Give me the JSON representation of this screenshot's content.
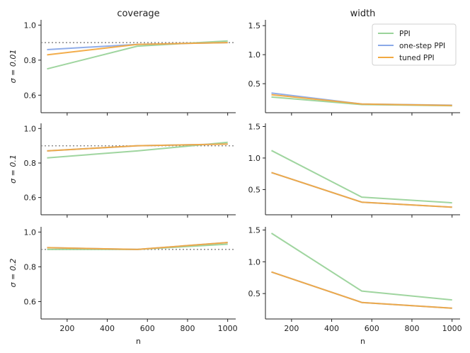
{
  "colors": {
    "PPI": "#9ad39a",
    "one-step PPI": "#8aa9e8",
    "tuned PPI": "#f2a941",
    "reference": "#888888"
  },
  "chart_data": {
    "type": "line",
    "column_titles": [
      "coverage",
      "width"
    ],
    "row_labels": [
      "σ = 0.01",
      "σ = 0.1",
      "σ = 0.2"
    ],
    "xlabel": "n",
    "x": [
      100,
      550,
      1000
    ],
    "x_ticks": [
      200,
      400,
      600,
      800,
      1000
    ],
    "xlim": [
      70,
      1040
    ],
    "legend": {
      "placement": "top-right",
      "entries": [
        "PPI",
        "one-step PPI",
        "tuned PPI"
      ]
    },
    "panels": [
      {
        "row": 0,
        "col": 0,
        "ylim": [
          0.5,
          1.03
        ],
        "y_ticks": [
          0.6,
          0.8,
          1.0
        ],
        "y_tick_labels": [
          "0.6",
          "0.8",
          "1.0"
        ],
        "reference_line": 0.9,
        "series": [
          {
            "name": "PPI",
            "values": [
              0.75,
              0.88,
              0.91
            ]
          },
          {
            "name": "one-step PPI",
            "values": [
              0.86,
              0.89,
              0.9
            ]
          },
          {
            "name": "tuned PPI",
            "values": [
              0.83,
              0.89,
              0.9
            ]
          }
        ]
      },
      {
        "row": 0,
        "col": 1,
        "ylim": [
          0.0,
          1.6
        ],
        "y_ticks": [
          0.5,
          1.0,
          1.5
        ],
        "y_tick_labels": [
          "0.5",
          "1.0",
          "1.5"
        ],
        "series": [
          {
            "name": "PPI",
            "values": [
              0.27,
              0.14,
              0.12
            ]
          },
          {
            "name": "one-step PPI",
            "values": [
              0.34,
              0.15,
              0.13
            ]
          },
          {
            "name": "tuned PPI",
            "values": [
              0.31,
              0.15,
              0.125
            ]
          }
        ]
      },
      {
        "row": 1,
        "col": 0,
        "ylim": [
          0.5,
          1.03
        ],
        "y_ticks": [
          0.6,
          0.8,
          1.0
        ],
        "y_tick_labels": [
          "0.6",
          "0.8",
          "1.0"
        ],
        "reference_line": 0.9,
        "series": [
          {
            "name": "PPI",
            "values": [
              0.83,
              0.87,
              0.92
            ]
          },
          {
            "name": "one-step PPI",
            "values": [
              0.87,
              0.9,
              0.91
            ]
          },
          {
            "name": "tuned PPI",
            "values": [
              0.87,
              0.9,
              0.91
            ]
          }
        ]
      },
      {
        "row": 1,
        "col": 1,
        "ylim": [
          0.1,
          1.55
        ],
        "y_ticks": [
          0.5,
          1.0,
          1.5
        ],
        "y_tick_labels": [
          "0.5",
          "1.0",
          "1.5"
        ],
        "series": [
          {
            "name": "PPI",
            "values": [
              1.12,
              0.38,
              0.29
            ]
          },
          {
            "name": "one-step PPI",
            "values": [
              0.77,
              0.3,
              0.22
            ]
          },
          {
            "name": "tuned PPI",
            "values": [
              0.77,
              0.3,
              0.22
            ]
          }
        ]
      },
      {
        "row": 2,
        "col": 0,
        "ylim": [
          0.5,
          1.03
        ],
        "y_ticks": [
          0.6,
          0.8,
          1.0
        ],
        "y_tick_labels": [
          "0.6",
          "0.8",
          "1.0"
        ],
        "reference_line": 0.9,
        "series": [
          {
            "name": "PPI",
            "values": [
              0.9,
              0.9,
              0.93
            ]
          },
          {
            "name": "one-step PPI",
            "values": [
              0.91,
              0.9,
              0.94
            ]
          },
          {
            "name": "tuned PPI",
            "values": [
              0.91,
              0.9,
              0.94
            ]
          }
        ]
      },
      {
        "row": 2,
        "col": 1,
        "ylim": [
          0.1,
          1.55
        ],
        "y_ticks": [
          0.5,
          1.0,
          1.5
        ],
        "y_tick_labels": [
          "0.5",
          "1.0",
          "1.5"
        ],
        "series": [
          {
            "name": "PPI",
            "values": [
              1.45,
              0.54,
              0.4
            ]
          },
          {
            "name": "one-step PPI",
            "values": [
              0.84,
              0.36,
              0.27
            ]
          },
          {
            "name": "tuned PPI",
            "values": [
              0.84,
              0.36,
              0.27
            ]
          }
        ]
      }
    ]
  }
}
